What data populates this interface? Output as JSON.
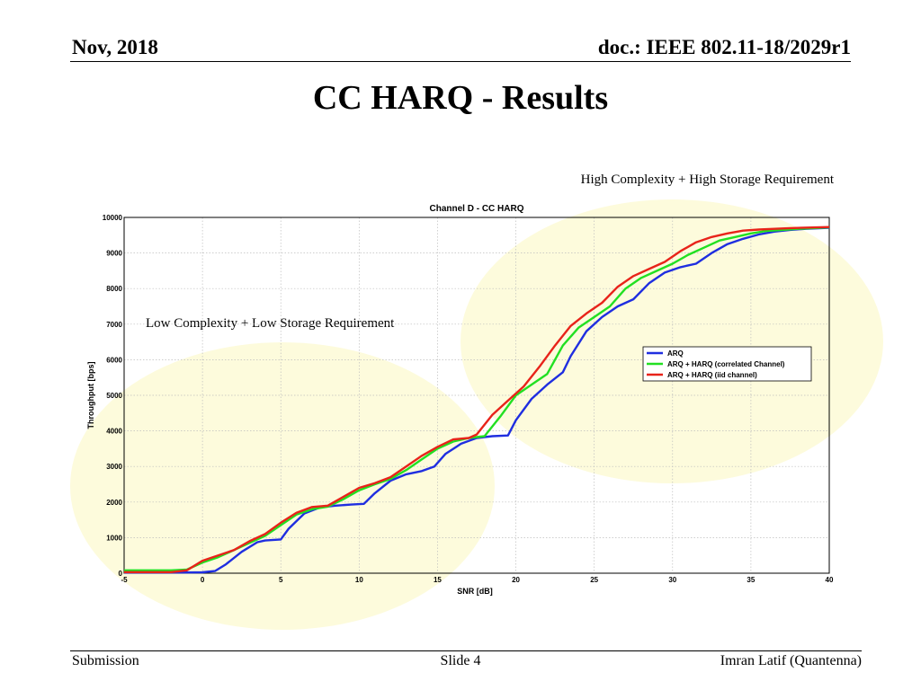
{
  "header": {
    "date": "Nov, 2018",
    "doc": "doc.: IEEE 802.11-18/2029r1"
  },
  "slide": {
    "title": "CC HARQ - Results"
  },
  "annotations": {
    "high": "High Complexity + High Storage Requirement",
    "low": "Low Complexity + Low Storage Requirement"
  },
  "footer": {
    "left": "Submission",
    "center": "Slide 4",
    "right": "Imran Latif (Quantenna)"
  },
  "colors": {
    "highlight": "#fdfbdc",
    "arq": "#1f2ee0",
    "corr": "#22e022",
    "iid": "#e8231a",
    "grid": "#bdbdbd"
  },
  "chart_data": {
    "type": "line",
    "title": "Channel D - CC HARQ",
    "xlabel": "SNR [dB]",
    "ylabel": "Throughput [bps]",
    "xlim": [
      -5,
      40
    ],
    "ylim": [
      0,
      10000
    ],
    "xticks": [
      -5,
      0,
      5,
      10,
      15,
      20,
      25,
      30,
      35,
      40
    ],
    "yticks": [
      0,
      1000,
      2000,
      3000,
      4000,
      5000,
      6000,
      7000,
      8000,
      9000,
      10000
    ],
    "grid": true,
    "legend_position": "right",
    "series": [
      {
        "name": "ARQ",
        "color": "#1f2ee0",
        "x": [
          -5,
          -1,
          0,
          0.8,
          1.5,
          2.5,
          3.5,
          4,
          5,
          5.5,
          6.5,
          7.5,
          8.5,
          9.5,
          10.3,
          11,
          12,
          13,
          14,
          14.8,
          15.5,
          16.5,
          17.5,
          18.5,
          19.5,
          20,
          21,
          22,
          23,
          23.5,
          24.5,
          25.5,
          26.5,
          27.5,
          28.5,
          29.5,
          30.5,
          31.5,
          32.5,
          33.5,
          34.5,
          35.5,
          36.5,
          37.5,
          38.5,
          40
        ],
        "y": [
          20,
          20,
          25,
          60,
          250,
          600,
          870,
          920,
          950,
          1250,
          1680,
          1850,
          1900,
          1930,
          1950,
          2250,
          2600,
          2780,
          2870,
          3000,
          3350,
          3640,
          3800,
          3850,
          3870,
          4300,
          4900,
          5300,
          5650,
          6100,
          6800,
          7200,
          7500,
          7700,
          8150,
          8450,
          8600,
          8700,
          9000,
          9250,
          9400,
          9520,
          9600,
          9650,
          9680,
          9710
        ]
      },
      {
        "name": "ARQ + HARQ (correlated Channel)",
        "color": "#22e022",
        "x": [
          -5,
          -2,
          -1,
          0,
          1,
          2,
          3,
          4,
          5,
          6,
          7,
          8,
          9,
          10,
          11,
          12,
          13,
          14,
          15,
          16,
          17,
          18,
          19,
          20,
          21,
          22,
          23,
          24,
          25,
          26,
          27,
          28,
          29,
          30,
          31,
          32,
          33,
          34,
          35,
          36,
          37,
          38,
          40
        ],
        "y": [
          80,
          80,
          100,
          300,
          450,
          650,
          850,
          1050,
          1350,
          1650,
          1800,
          1870,
          2080,
          2330,
          2500,
          2650,
          2900,
          3200,
          3500,
          3700,
          3800,
          3850,
          4400,
          5000,
          5300,
          5600,
          6400,
          6900,
          7200,
          7500,
          8000,
          8300,
          8500,
          8700,
          8950,
          9150,
          9350,
          9450,
          9550,
          9620,
          9650,
          9680,
          9720
        ]
      },
      {
        "name": "ARQ + HARQ (iid channel)",
        "color": "#e8231a",
        "x": [
          -5,
          -2,
          -1,
          0,
          1,
          2,
          3,
          4,
          5,
          6,
          7,
          8,
          9,
          10,
          11,
          12,
          13,
          14,
          15,
          16,
          17,
          17.5,
          18.5,
          19.5,
          20.5,
          21.5,
          22.5,
          23.5,
          24.5,
          25.5,
          26.5,
          27.5,
          28.5,
          29.5,
          30.5,
          31.5,
          32.5,
          33.5,
          34.5,
          35.5,
          36.5,
          37.5,
          40
        ],
        "y": [
          30,
          30,
          80,
          350,
          500,
          650,
          900,
          1100,
          1420,
          1700,
          1860,
          1900,
          2150,
          2400,
          2530,
          2700,
          3000,
          3300,
          3550,
          3760,
          3800,
          3900,
          4450,
          4850,
          5250,
          5800,
          6400,
          6950,
          7300,
          7600,
          8050,
          8350,
          8550,
          8750,
          9050,
          9300,
          9450,
          9550,
          9630,
          9660,
          9680,
          9700,
          9730
        ]
      }
    ]
  }
}
